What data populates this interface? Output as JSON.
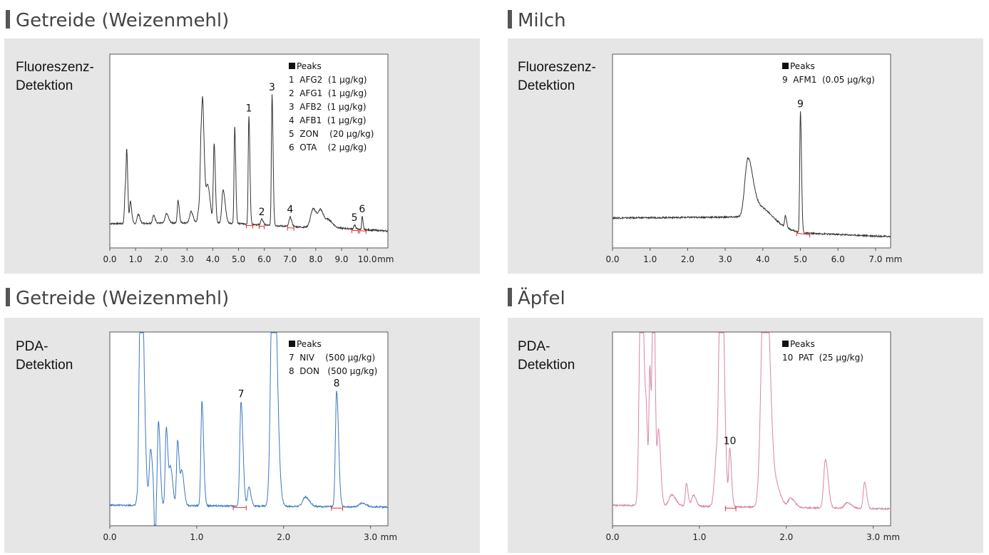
{
  "panels": [
    {
      "title": "Getreide (Weizenmehl)",
      "detection": "Fluoreszenz-\nDetektion",
      "chart_data": {
        "type": "line",
        "color": "#333333",
        "xlim": [
          0,
          10.8
        ],
        "ylim": [
          0,
          100
        ],
        "xticks": [
          "0.0",
          "1.0",
          "2.0",
          "3.0",
          "4.0",
          "5.0",
          "6.0",
          "7.0",
          "8.0",
          "9.0",
          "10.0"
        ],
        "xunit": "mm",
        "baseline": [
          [
            0,
            10
          ],
          [
            0.5,
            10
          ],
          [
            3.4,
            10.5
          ],
          [
            5,
            10
          ],
          [
            7.6,
            8
          ],
          [
            9,
            7.5
          ],
          [
            10.8,
            6
          ]
        ],
        "peaks": [
          [
            0.6,
            18,
            0.03
          ],
          [
            0.66,
            32,
            0.025
          ],
          [
            0.8,
            12,
            0.03
          ],
          [
            1.1,
            5,
            0.04
          ],
          [
            1.7,
            4,
            0.04
          ],
          [
            2.2,
            5,
            0.05
          ],
          [
            2.65,
            12,
            0.03
          ],
          [
            3.15,
            6,
            0.05
          ],
          [
            3.45,
            6,
            0.04
          ],
          [
            3.55,
            43,
            0.04
          ],
          [
            3.62,
            40,
            0.04
          ],
          [
            3.8,
            20,
            0.06
          ],
          [
            4.05,
            42,
            0.03
          ],
          [
            4.4,
            18,
            0.05
          ],
          [
            4.85,
            52,
            0.025
          ],
          [
            5.4,
            58,
            0.025
          ],
          [
            5.9,
            3,
            0.04
          ],
          [
            6.3,
            70,
            0.025
          ],
          [
            7.0,
            5,
            0.04
          ],
          [
            7.9,
            10,
            0.1
          ],
          [
            8.2,
            8,
            0.08
          ],
          [
            8.5,
            4,
            0.1
          ],
          [
            9.5,
            2,
            0.03
          ],
          [
            9.8,
            7,
            0.02
          ]
        ],
        "labels": [
          {
            "text": "1",
            "x": 5.4
          },
          {
            "text": "2",
            "x": 5.9
          },
          {
            "text": "3",
            "x": 6.3
          },
          {
            "text": "4",
            "x": 7.0
          },
          {
            "text": "5",
            "x": 9.5
          },
          {
            "text": "6",
            "x": 9.8
          }
        ],
        "integrations": [
          5.3,
          5.55,
          5.8,
          6.0,
          6.9,
          7.15,
          9.4,
          9.65,
          9.7,
          9.95
        ],
        "legend": [
          "1  AFG2  (1 µg/kg)",
          "2  AFG1  (1 µg/kg)",
          "3  AFB2  (1 µg/kg)",
          "4  AFB1  (1 µg/kg)",
          "5  ZON    (20 µg/kg)",
          "6  OTA    (2 µg/kg)"
        ]
      }
    },
    {
      "title": "Milch",
      "detection": "Fluoreszenz-\nDetektion",
      "chart_data": {
        "type": "line",
        "color": "#333333",
        "xlim": [
          0,
          7.4
        ],
        "ylim": [
          0,
          100
        ],
        "xticks": [
          "0.0",
          "1.0",
          "2.0",
          "3.0",
          "4.0",
          "5.0",
          "6.0",
          "7.0"
        ],
        "xunit": "mm",
        "baseline": [
          [
            0,
            13
          ],
          [
            3.3,
            13.5
          ],
          [
            4.2,
            10
          ],
          [
            5,
            5
          ],
          [
            7.4,
            3
          ]
        ],
        "peaks": [
          [
            3.6,
            30,
            0.08
          ],
          [
            3.9,
            8,
            0.2
          ],
          [
            4.6,
            6,
            0.02
          ],
          [
            5.0,
            65,
            0.018
          ]
        ],
        "labels": [
          {
            "text": "9",
            "x": 5.0
          }
        ],
        "integrations": [
          4.9,
          5.25
        ],
        "legend": [
          "9  AFM1  (0.05 µg/kg)"
        ]
      }
    },
    {
      "title": "Getreide (Weizenmehl)",
      "detection": "PDA-\nDetektion",
      "chart_data": {
        "type": "line",
        "color": "#3b78c2",
        "xlim": [
          0,
          3.2
        ],
        "ylim": [
          0,
          100
        ],
        "xticks": [
          "0.0",
          "1.0",
          "2.0",
          "3.0"
        ],
        "xunit": "mm",
        "baseline": [
          [
            0,
            8
          ],
          [
            3.2,
            7
          ]
        ],
        "peaks": [
          [
            0.36,
            140,
            0.02
          ],
          [
            0.47,
            30,
            0.015
          ],
          [
            0.56,
            45,
            0.012
          ],
          [
            0.65,
            42,
            0.012
          ],
          [
            0.7,
            20,
            0.015
          ],
          [
            0.78,
            35,
            0.012
          ],
          [
            0.83,
            18,
            0.015
          ],
          [
            1.06,
            56,
            0.012
          ],
          [
            1.51,
            56,
            0.014
          ],
          [
            1.6,
            10,
            0.015
          ],
          [
            1.88,
            160,
            0.025
          ],
          [
            2.25,
            5,
            0.03
          ],
          [
            2.61,
            62,
            0.014
          ],
          [
            2.9,
            2,
            0.03
          ]
        ],
        "dips": [
          [
            0.32,
            6,
            0.006
          ],
          [
            0.52,
            30,
            0.008
          ]
        ],
        "labels": [
          {
            "text": "7",
            "x": 1.51
          },
          {
            "text": "8",
            "x": 2.61
          }
        ],
        "integrations": [
          1.42,
          1.57,
          2.55,
          2.68
        ],
        "legend": [
          "7  NIV    (500 µg/kg)",
          "8  DON   (500 µg/kg)"
        ]
      }
    },
    {
      "title": "Äpfel",
      "detection": "PDA-\nDetektion",
      "chart_data": {
        "type": "line",
        "color": "#d884a8",
        "xlim": [
          0,
          3.2
        ],
        "ylim": [
          0,
          100
        ],
        "xticks": [
          "0.0",
          "1.0",
          "2.0",
          "3.0"
        ],
        "xunit": "mm",
        "baseline": [
          [
            0,
            8
          ],
          [
            3.2,
            6
          ]
        ],
        "peaks": [
          [
            0.33,
            140,
            0.02
          ],
          [
            0.39,
            30,
            0.012
          ],
          [
            0.43,
            70,
            0.01
          ],
          [
            0.47,
            140,
            0.012
          ],
          [
            0.53,
            40,
            0.015
          ],
          [
            0.68,
            6,
            0.03
          ],
          [
            0.85,
            12,
            0.012
          ],
          [
            0.93,
            6,
            0.02
          ],
          [
            1.2,
            28,
            0.025
          ],
          [
            1.25,
            150,
            0.02
          ],
          [
            1.35,
            30,
            0.012
          ],
          [
            1.75,
            150,
            0.035
          ],
          [
            1.9,
            8,
            0.03
          ],
          [
            2.05,
            5,
            0.03
          ],
          [
            2.45,
            26,
            0.02
          ],
          [
            2.7,
            3,
            0.03
          ],
          [
            2.9,
            14,
            0.015
          ]
        ],
        "labels": [
          {
            "text": "10",
            "x": 1.35
          }
        ],
        "integrations": [
          1.3,
          1.42
        ],
        "legend": [
          "10  PAT  (25 µg/kg)"
        ]
      }
    }
  ],
  "legend_header": "Peaks"
}
